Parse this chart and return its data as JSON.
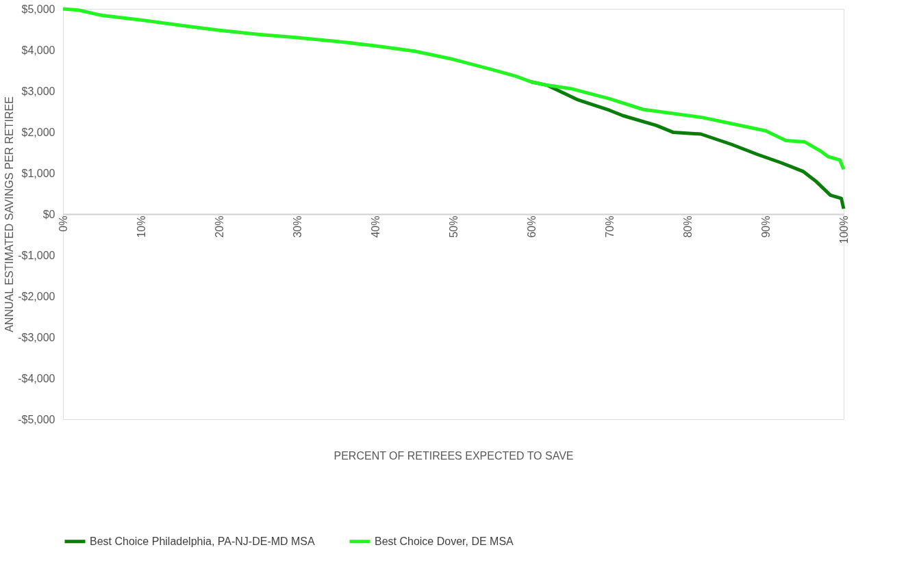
{
  "chart_data": {
    "type": "line",
    "xlabel": "PERCENT OF RETIREES EXPECTED TO SAVE",
    "ylabel": "ANNUAL ESTIMATED SAVINGS PER RETIREE",
    "xlim": [
      0,
      100
    ],
    "ylim": [
      -5000,
      5000
    ],
    "xticks": [
      {
        "value": 0,
        "label": "0%"
      },
      {
        "value": 10,
        "label": "10%"
      },
      {
        "value": 20,
        "label": "20%"
      },
      {
        "value": 30,
        "label": "30%"
      },
      {
        "value": 40,
        "label": "40%"
      },
      {
        "value": 50,
        "label": "50%"
      },
      {
        "value": 60,
        "label": "60%"
      },
      {
        "value": 70,
        "label": "70%"
      },
      {
        "value": 80,
        "label": "80%"
      },
      {
        "value": 90,
        "label": "90%"
      },
      {
        "value": 100,
        "label": "100%"
      }
    ],
    "yticks": [
      {
        "value": 5000,
        "label": "$5,000"
      },
      {
        "value": 4000,
        "label": "$4,000"
      },
      {
        "value": 3000,
        "label": "$3,000"
      },
      {
        "value": 2000,
        "label": "$2,000"
      },
      {
        "value": 1000,
        "label": "$1,000"
      },
      {
        "value": 0,
        "label": "$0"
      },
      {
        "value": -1000,
        "label": "-$1,000"
      },
      {
        "value": -2000,
        "label": "-$2,000"
      },
      {
        "value": -3000,
        "label": "-$3,000"
      },
      {
        "value": -4000,
        "label": "-$4,000"
      },
      {
        "value": -5000,
        "label": "-$5,000"
      }
    ],
    "grid": false,
    "legend": "bottom",
    "marker": "none",
    "line_style": "solid",
    "series": [
      {
        "name": "Best Choice Philadelphia, PA-NJ-DE-MD MSA",
        "color": "#0a7d0a",
        "x": [
          60,
          62,
          66,
          70,
          71.7,
          76,
          78.2,
          81.7,
          85.6,
          89,
          92,
          94.8,
          96.5,
          98.3,
          99.7,
          100
        ],
        "values": [
          3220,
          3140,
          2780,
          2530,
          2400,
          2160,
          1990,
          1950,
          1700,
          1450,
          1250,
          1040,
          790,
          460,
          380,
          130
        ]
      },
      {
        "name": "Best Choice Dover, DE MSA",
        "color": "#22f522",
        "x": [
          0,
          2,
          5,
          10,
          15,
          20,
          25,
          30,
          35,
          40,
          45,
          50,
          55,
          58,
          60,
          62,
          65,
          70,
          74.3,
          81.7,
          85,
          90,
          92.6,
          95,
          97,
          98,
          99.5,
          100
        ],
        "values": [
          5000,
          4970,
          4840,
          4730,
          4600,
          4480,
          4380,
          4300,
          4210,
          4100,
          3970,
          3770,
          3520,
          3360,
          3220,
          3140,
          3060,
          2810,
          2550,
          2360,
          2230,
          2030,
          1790,
          1760,
          1540,
          1400,
          1320,
          1090
        ]
      }
    ]
  }
}
